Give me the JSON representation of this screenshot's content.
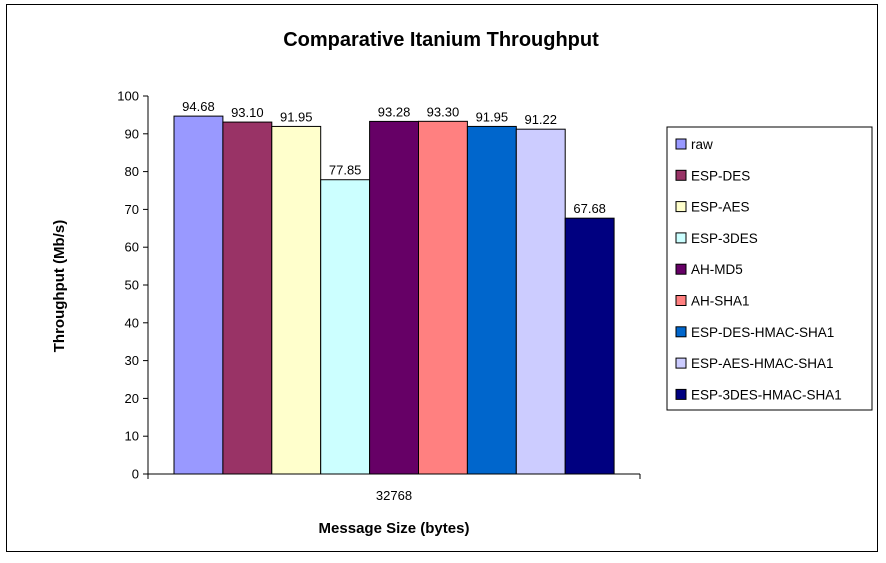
{
  "chart_data": {
    "type": "bar",
    "title": "Comparative Itanium Throughput",
    "xlabel": "Message Size (bytes)",
    "ylabel": "Throughput (Mb/s)",
    "categories": [
      "32768"
    ],
    "ylim": [
      0,
      100
    ],
    "yticks": [
      0,
      10,
      20,
      30,
      40,
      50,
      60,
      70,
      80,
      90,
      100
    ],
    "grid": false,
    "legend_position": "right",
    "series": [
      {
        "name": "raw",
        "values": [
          94.68
        ],
        "label": "94.68",
        "color": "#9999FF"
      },
      {
        "name": "ESP-DES",
        "values": [
          93.1
        ],
        "label": "93.10",
        "color": "#993366"
      },
      {
        "name": "ESP-AES",
        "values": [
          91.95
        ],
        "label": "91.95",
        "color": "#FFFFCC"
      },
      {
        "name": "ESP-3DES",
        "values": [
          77.85
        ],
        "label": "77.85",
        "color": "#CCFFFF"
      },
      {
        "name": "AH-MD5",
        "values": [
          93.28
        ],
        "label": "93.28",
        "color": "#660066"
      },
      {
        "name": "AH-SHA1",
        "values": [
          93.3
        ],
        "label": "93.30",
        "color": "#FF8080"
      },
      {
        "name": "ESP-DES-HMAC-SHA1",
        "values": [
          91.95
        ],
        "label": "91.95",
        "color": "#0066CC"
      },
      {
        "name": "ESP-AES-HMAC-SHA1",
        "values": [
          91.22
        ],
        "label": "91.22",
        "color": "#CCCCFF"
      },
      {
        "name": "ESP-3DES-HMAC-SHA1",
        "values": [
          67.68
        ],
        "label": "67.68",
        "color": "#000080"
      }
    ]
  }
}
